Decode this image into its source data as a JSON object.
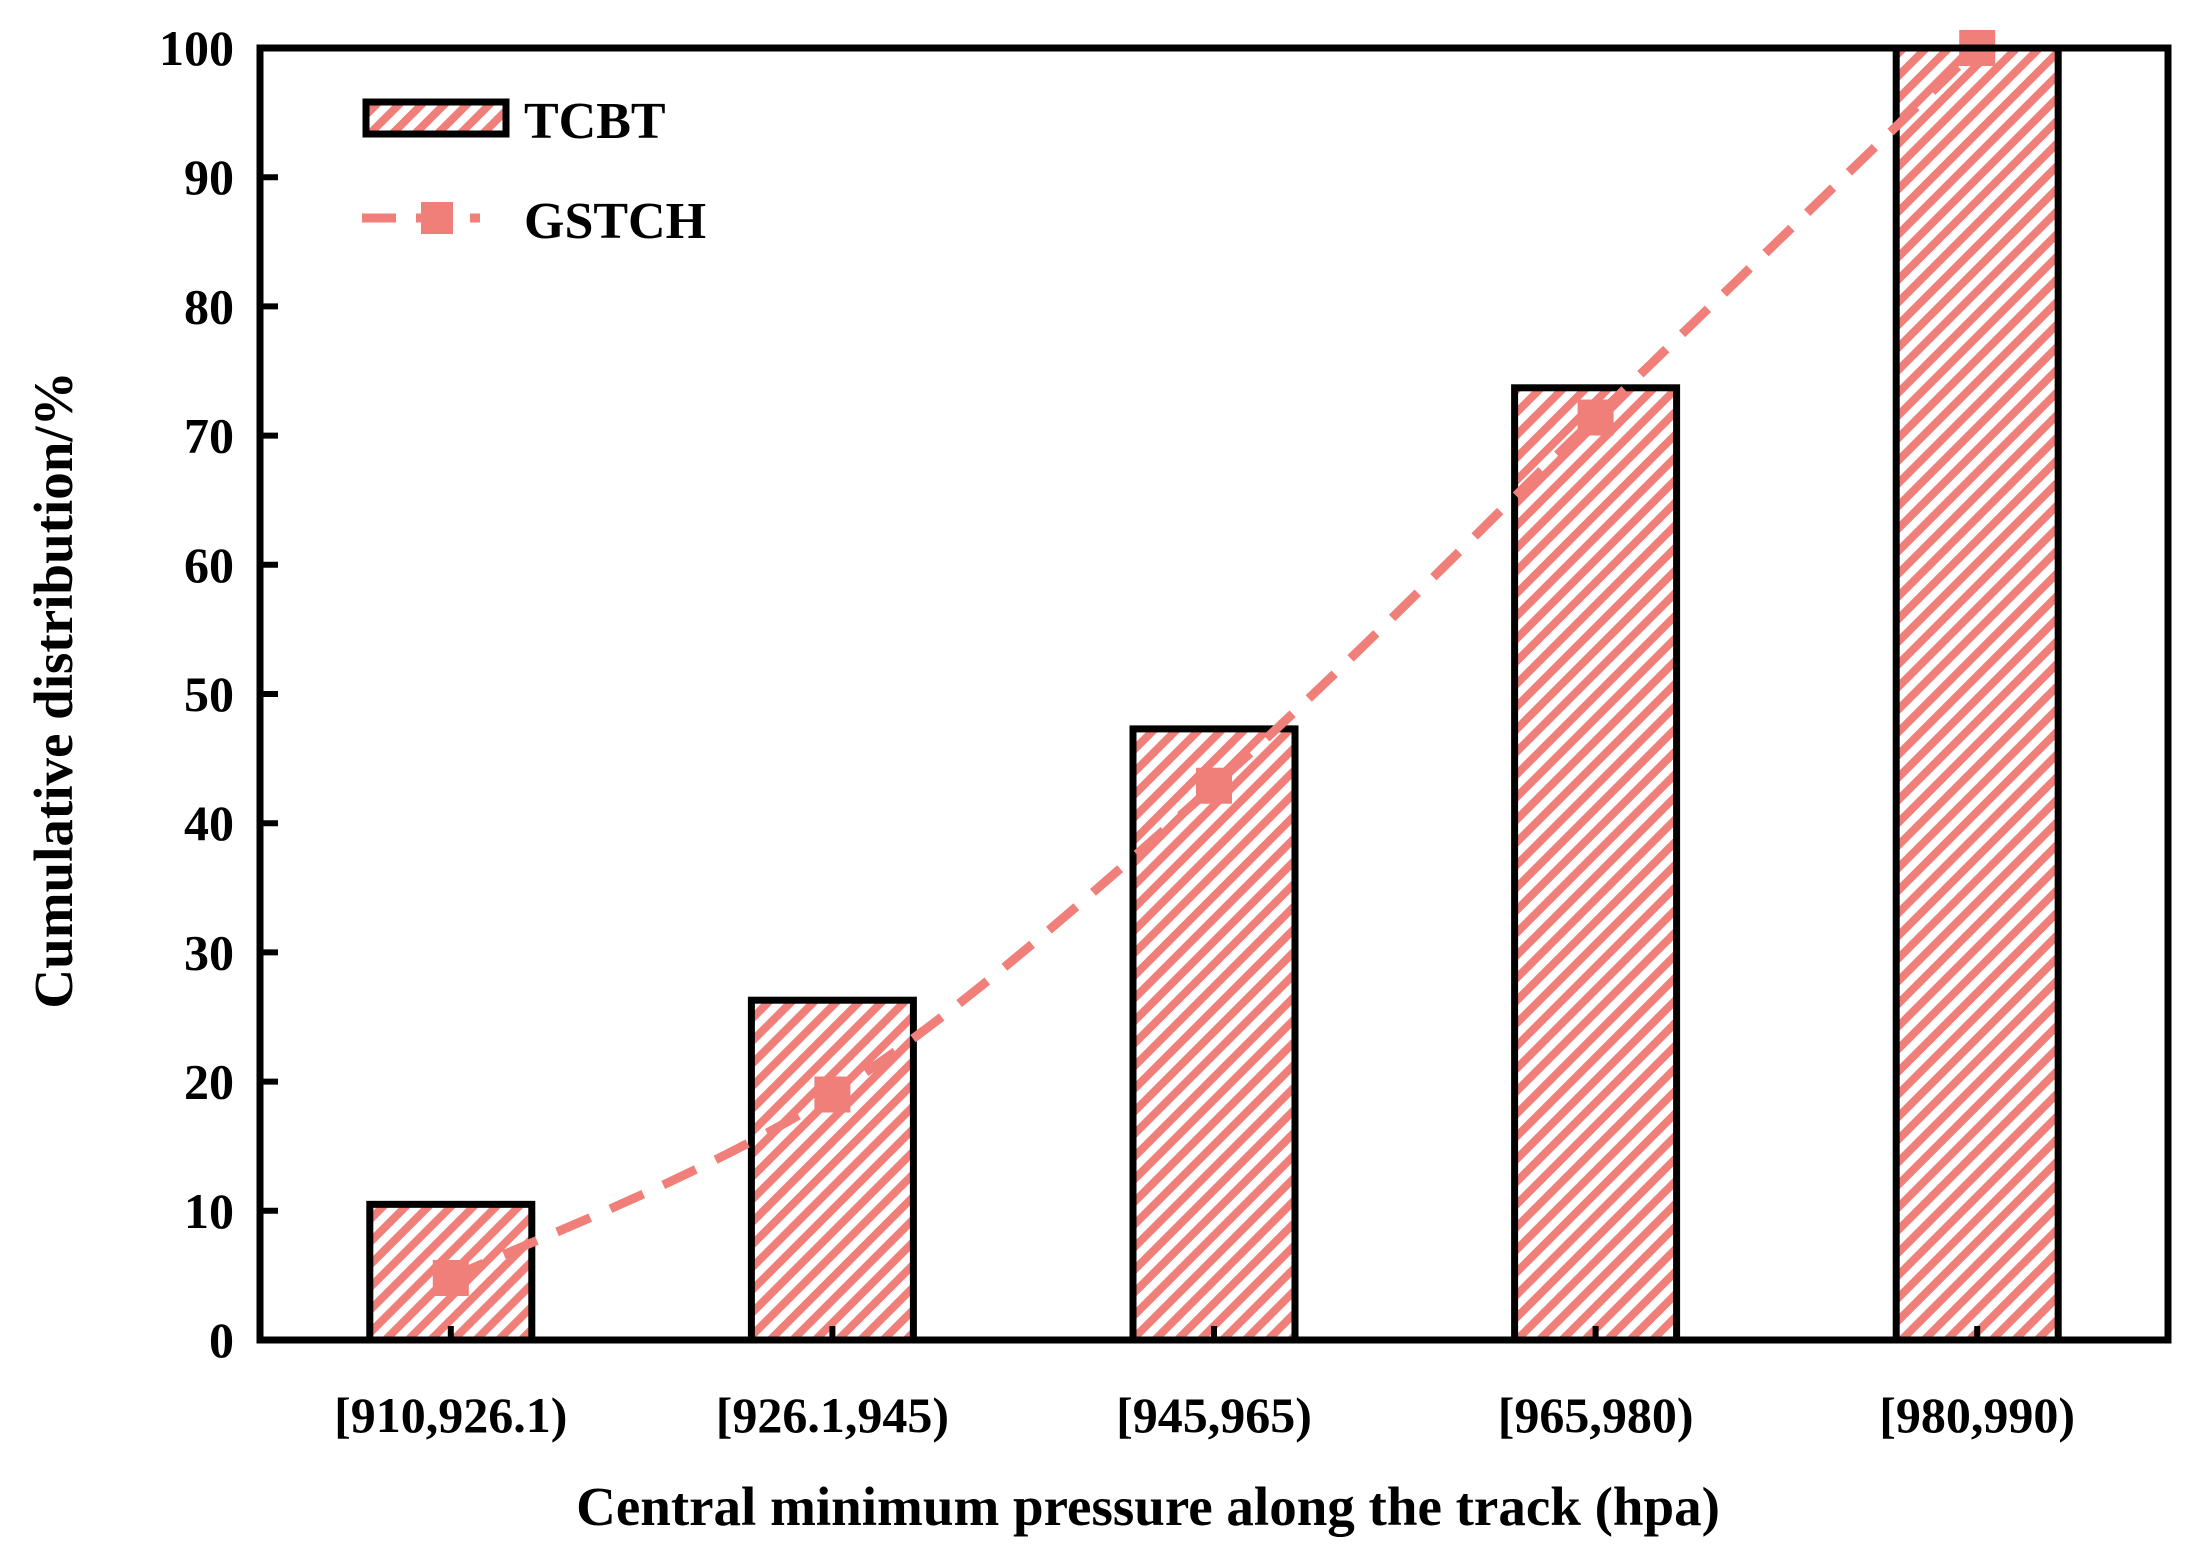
{
  "chart_data": {
    "type": "bar",
    "title": "",
    "xlabel": "Central minimum pressure along the track (hpa)",
    "ylabel": "Cumulative distribution/%",
    "ylim": [
      0,
      100
    ],
    "yticks": [
      0,
      10,
      20,
      30,
      40,
      50,
      60,
      70,
      80,
      90,
      100
    ],
    "categories": [
      "[910,926.1)",
      "[926.1,945)",
      "[945,965)",
      "[965,980)",
      "[980,990)"
    ],
    "series": [
      {
        "name": "TCBT",
        "kind": "bar",
        "values": [
          10.5,
          26.3,
          47.3,
          73.7,
          100
        ]
      },
      {
        "name": "GSTCH",
        "kind": "line",
        "values": [
          4.8,
          19.0,
          42.9,
          71.4,
          100
        ]
      }
    ],
    "legend": {
      "position": "top-left",
      "entries": [
        "TCBT",
        "GSTCH"
      ]
    },
    "grid": false
  },
  "colors": {
    "accent": "#f07f7a",
    "axis": "#000000",
    "background": "#ffffff"
  }
}
